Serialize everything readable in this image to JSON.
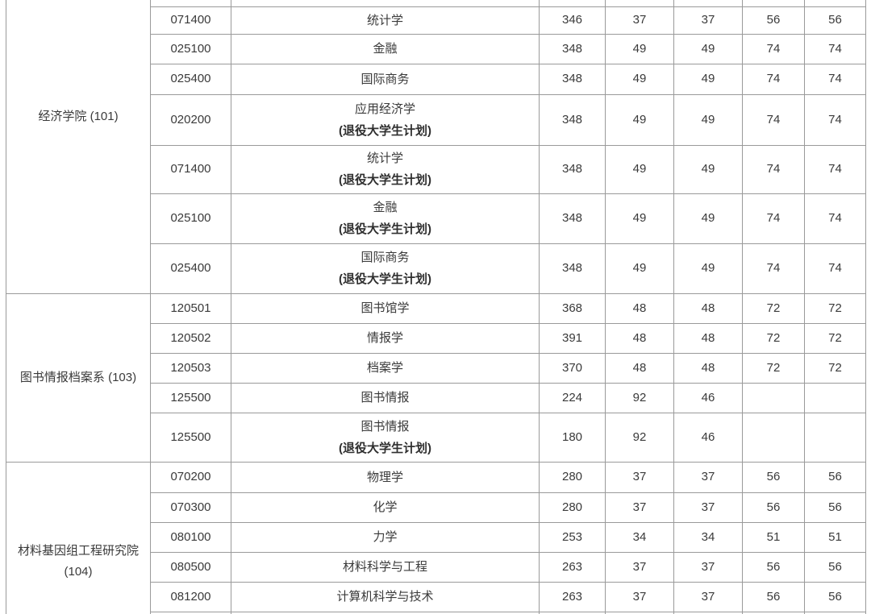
{
  "table": {
    "sections": [
      {
        "department": "经济学院 (101)",
        "rows": [
          {
            "code": "071400",
            "major": "统计学",
            "note": "",
            "scores": [
              "346",
              "37",
              "37",
              "56",
              "56"
            ]
          },
          {
            "code": "025100",
            "major": "金融",
            "note": "",
            "scores": [
              "348",
              "49",
              "49",
              "74",
              "74"
            ]
          },
          {
            "code": "025400",
            "major": "国际商务",
            "note": "",
            "scores": [
              "348",
              "49",
              "49",
              "74",
              "74"
            ]
          },
          {
            "code": "020200",
            "major": "应用经济学",
            "note": "(退役大学生计划)",
            "scores": [
              "348",
              "49",
              "49",
              "74",
              "74"
            ]
          },
          {
            "code": "071400",
            "major": "统计学",
            "note": "(退役大学生计划)",
            "scores": [
              "348",
              "49",
              "49",
              "74",
              "74"
            ]
          },
          {
            "code": "025100",
            "major": "金融",
            "note": "(退役大学生计划)",
            "scores": [
              "348",
              "49",
              "49",
              "74",
              "74"
            ]
          },
          {
            "code": "025400",
            "major": "国际商务",
            "note": "(退役大学生计划)",
            "scores": [
              "348",
              "49",
              "49",
              "74",
              "74"
            ]
          }
        ]
      },
      {
        "department": "图书情报档案系 (103)",
        "rows": [
          {
            "code": "120501",
            "major": "图书馆学",
            "note": "",
            "scores": [
              "368",
              "48",
              "48",
              "72",
              "72"
            ]
          },
          {
            "code": "120502",
            "major": "情报学",
            "note": "",
            "scores": [
              "391",
              "48",
              "48",
              "72",
              "72"
            ]
          },
          {
            "code": "120503",
            "major": "档案学",
            "note": "",
            "scores": [
              "370",
              "48",
              "48",
              "72",
              "72"
            ]
          },
          {
            "code": "125500",
            "major": "图书情报",
            "note": "",
            "scores": [
              "224",
              "92",
              "46",
              "",
              ""
            ]
          },
          {
            "code": "125500",
            "major": "图书情报",
            "note": "(退役大学生计划)",
            "scores": [
              "180",
              "92",
              "46",
              "",
              ""
            ]
          }
        ]
      },
      {
        "department": "材料基因组工程研究院 (104)",
        "rows": [
          {
            "code": "070200",
            "major": "物理学",
            "note": "",
            "scores": [
              "280",
              "37",
              "37",
              "56",
              "56"
            ]
          },
          {
            "code": "070300",
            "major": "化学",
            "note": "",
            "scores": [
              "280",
              "37",
              "37",
              "56",
              "56"
            ]
          },
          {
            "code": "080100",
            "major": "力学",
            "note": "",
            "scores": [
              "253",
              "34",
              "34",
              "51",
              "51"
            ]
          },
          {
            "code": "080500",
            "major": "材料科学与工程",
            "note": "",
            "scores": [
              "263",
              "37",
              "37",
              "56",
              "56"
            ]
          },
          {
            "code": "081200",
            "major": "计算机科学与技术",
            "note": "",
            "scores": [
              "263",
              "37",
              "37",
              "56",
              "56"
            ]
          }
        ]
      }
    ]
  }
}
